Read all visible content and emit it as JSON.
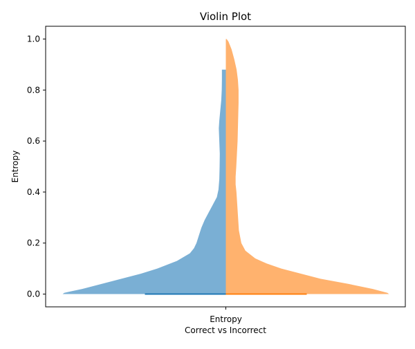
{
  "chart_data": {
    "type": "violin",
    "title": "Violin Plot",
    "xlabel": "Correct vs Incorrect",
    "ylabel": "Entropy",
    "categories": [
      "Entropy"
    ],
    "ylim": [
      -0.05,
      1.05
    ],
    "yticks": [
      "0.0",
      "0.2",
      "0.4",
      "0.6",
      "0.8",
      "1.0"
    ],
    "grid": false,
    "series": [
      {
        "side": "left",
        "color": "#1f77b4",
        "fill_color": "#7aafd4",
        "y_max": 0.88,
        "median": 0.0,
        "profile": [
          [
            0.0,
            1.0
          ],
          [
            0.005,
            0.99
          ],
          [
            0.01,
            0.955
          ],
          [
            0.02,
            0.88
          ],
          [
            0.04,
            0.76
          ],
          [
            0.06,
            0.64
          ],
          [
            0.08,
            0.52
          ],
          [
            0.1,
            0.42
          ],
          [
            0.13,
            0.3
          ],
          [
            0.16,
            0.22
          ],
          [
            0.18,
            0.195
          ],
          [
            0.2,
            0.18
          ],
          [
            0.23,
            0.165
          ],
          [
            0.26,
            0.15
          ],
          [
            0.29,
            0.13
          ],
          [
            0.32,
            0.105
          ],
          [
            0.35,
            0.08
          ],
          [
            0.38,
            0.055
          ],
          [
            0.41,
            0.045
          ],
          [
            0.45,
            0.04
          ],
          [
            0.5,
            0.038
          ],
          [
            0.55,
            0.037
          ],
          [
            0.6,
            0.04
          ],
          [
            0.65,
            0.043
          ],
          [
            0.68,
            0.04
          ],
          [
            0.72,
            0.034
          ],
          [
            0.76,
            0.028
          ],
          [
            0.8,
            0.025
          ],
          [
            0.84,
            0.024
          ],
          [
            0.88,
            0.024
          ]
        ]
      },
      {
        "side": "right",
        "color": "#ff7f0e",
        "fill_color": "#ffb26e",
        "y_max": 1.0,
        "median": 0.0,
        "profile": [
          [
            0.0,
            1.0
          ],
          [
            0.005,
            0.99
          ],
          [
            0.01,
            0.96
          ],
          [
            0.02,
            0.9
          ],
          [
            0.04,
            0.75
          ],
          [
            0.06,
            0.58
          ],
          [
            0.08,
            0.46
          ],
          [
            0.1,
            0.34
          ],
          [
            0.12,
            0.25
          ],
          [
            0.14,
            0.18
          ],
          [
            0.17,
            0.12
          ],
          [
            0.2,
            0.095
          ],
          [
            0.25,
            0.08
          ],
          [
            0.3,
            0.075
          ],
          [
            0.35,
            0.07
          ],
          [
            0.4,
            0.065
          ],
          [
            0.43,
            0.06
          ],
          [
            0.46,
            0.06
          ],
          [
            0.5,
            0.064
          ],
          [
            0.55,
            0.068
          ],
          [
            0.6,
            0.072
          ],
          [
            0.65,
            0.074
          ],
          [
            0.7,
            0.076
          ],
          [
            0.75,
            0.078
          ],
          [
            0.8,
            0.078
          ],
          [
            0.84,
            0.074
          ],
          [
            0.88,
            0.066
          ],
          [
            0.92,
            0.052
          ],
          [
            0.96,
            0.035
          ],
          [
            0.99,
            0.016
          ],
          [
            1.0,
            0.005
          ]
        ]
      }
    ],
    "colors": {
      "background": "#ffffff",
      "axes": "#000000"
    }
  }
}
